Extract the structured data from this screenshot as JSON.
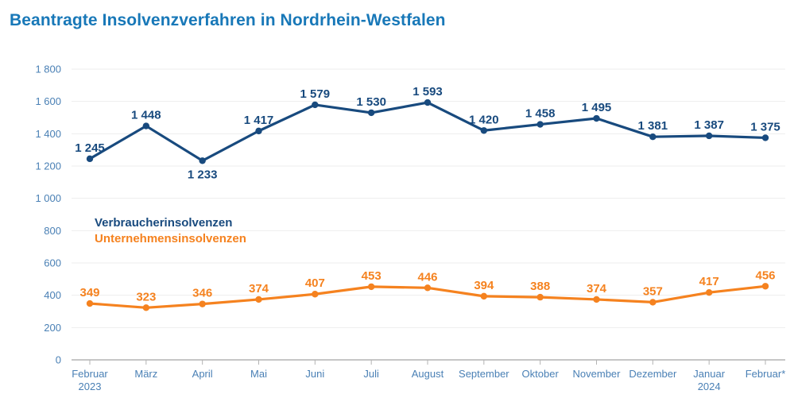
{
  "title": "Beantragte Insolvenzverfahren in Nordrhein-Westfalen",
  "chart_data": {
    "type": "line",
    "title": "Beantragte Insolvenzverfahren in Nordrhein-Westfalen",
    "xlabel": "",
    "ylabel": "",
    "ylim": [
      0,
      1800
    ],
    "ytick_step": 200,
    "grid": true,
    "legend_position": "inside-left",
    "yticks": [
      0,
      200,
      400,
      600,
      800,
      1000,
      1200,
      1400,
      1600,
      1800
    ],
    "ytick_labels": [
      "0",
      "200",
      "400",
      "600",
      "800",
      "1 000",
      "1 200",
      "1 400",
      "1 600",
      "1 800"
    ],
    "categories": [
      {
        "label": "Februar",
        "sublabel": "2023"
      },
      {
        "label": "März"
      },
      {
        "label": "April"
      },
      {
        "label": "Mai"
      },
      {
        "label": "Juni"
      },
      {
        "label": "Juli"
      },
      {
        "label": "August"
      },
      {
        "label": "September"
      },
      {
        "label": "Oktober"
      },
      {
        "label": "November"
      },
      {
        "label": "Dezember"
      },
      {
        "label": "Januar",
        "sublabel": "2024"
      },
      {
        "label": "Februar*"
      }
    ],
    "series": [
      {
        "name": "Verbraucherinsolvenzen",
        "color": "#184A7E",
        "values": [
          1245,
          1448,
          1233,
          1417,
          1579,
          1530,
          1593,
          1420,
          1458,
          1495,
          1381,
          1387,
          1375
        ],
        "value_labels": [
          "1 245",
          "1 448",
          "1 233",
          "1 417",
          "1 579",
          "1 530",
          "1 593",
          "1 420",
          "1 458",
          "1 495",
          "1 381",
          "1 387",
          "1 375"
        ],
        "labels_below_indices": [
          2
        ]
      },
      {
        "name": "Unternehmensinsolvenzen",
        "color": "#F5821F",
        "values": [
          349,
          323,
          346,
          374,
          407,
          453,
          446,
          394,
          388,
          374,
          357,
          417,
          456
        ],
        "value_labels": [
          "349",
          "323",
          "346",
          "374",
          "407",
          "453",
          "446",
          "394",
          "388",
          "374",
          "357",
          "417",
          "456"
        ],
        "labels_below_indices": []
      }
    ],
    "colors": {
      "title": "#1878B8",
      "axis_labels": "#4A80B5",
      "gridline": "#EDEDED",
      "axis_line": "#B3B3B3",
      "background": "#FFFFFF"
    }
  }
}
